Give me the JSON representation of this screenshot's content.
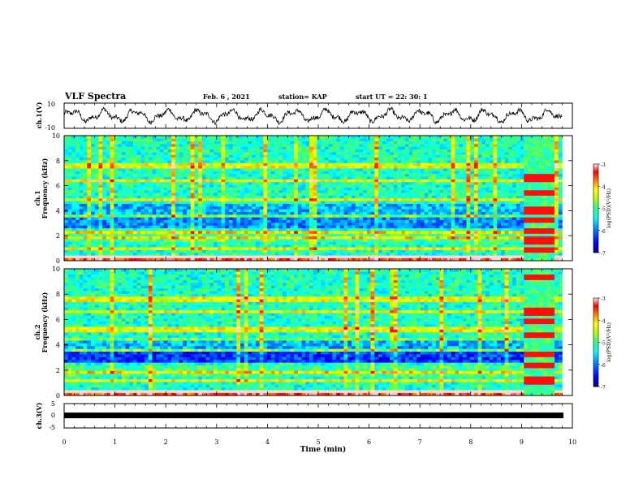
{
  "header": {
    "title": "VLF Spectra",
    "date": "Feb. 6 , 2021",
    "station": "station= KAP",
    "start": "start UT =  22: 30: 1"
  },
  "colorbar": {
    "label": "log(PSD)(V²/Hz)",
    "ticks": [
      "-3",
      "-4",
      "-5",
      "-6",
      "-7"
    ],
    "colors": [
      "#000080",
      "#0000ff",
      "#0080ff",
      "#00ffff",
      "#40ff80",
      "#c0ff00",
      "#ffff00",
      "#ff8000",
      "#ff0000",
      "#ffd0d0"
    ]
  },
  "chart_data": [
    {
      "type": "line",
      "ylabel": "ch.1(V)",
      "xlim": [
        0,
        10
      ],
      "ylim": [
        -10,
        10
      ],
      "yticks": [
        "10",
        "-10"
      ],
      "description_values": "waveform oscillating roughly between -6 and +6 V over 0-9.8 min"
    },
    {
      "type": "heatmap",
      "ylabel_line1": "ch.1",
      "ylabel_line2": "Frequency (kHz)",
      "xlim": [
        0,
        10
      ],
      "ylim": [
        0,
        10
      ],
      "yticks": [
        "0",
        "2",
        "4",
        "6",
        "8",
        "10"
      ],
      "zlim": [
        -7,
        -3
      ]
    },
    {
      "type": "heatmap",
      "ylabel_line1": "ch.2",
      "ylabel_line2": "Frequency (kHz)",
      "xlim": [
        0,
        10
      ],
      "ylim": [
        0,
        10
      ],
      "yticks": [
        "0",
        "2",
        "4",
        "6",
        "8",
        "10"
      ],
      "zlim": [
        -7,
        -3
      ]
    },
    {
      "type": "line",
      "ylabel": "ch.3(V)",
      "xlim": [
        0,
        10
      ],
      "ylim": [
        -5,
        5
      ],
      "yticks": [
        "5",
        "0",
        "-5"
      ],
      "level_V": 0
    }
  ],
  "xaxis": {
    "label": "Time (min)",
    "ticks": [
      "0",
      "1",
      "2",
      "3",
      "4",
      "5",
      "6",
      "7",
      "8",
      "9",
      "10"
    ]
  }
}
